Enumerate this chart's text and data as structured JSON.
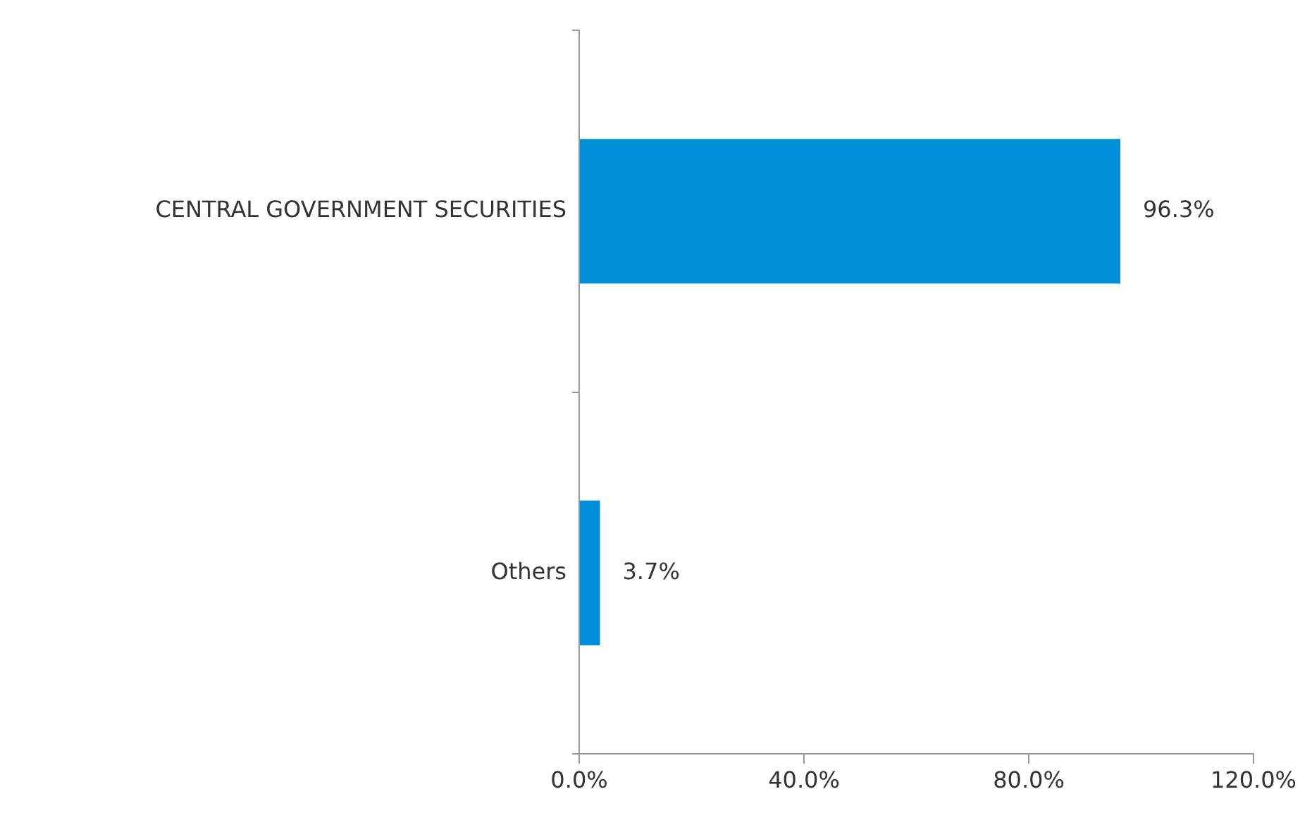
{
  "chart_data": {
    "type": "bar",
    "orientation": "horizontal",
    "categories": [
      "CENTRAL GOVERNMENT SECURITIES",
      "Others"
    ],
    "values": [
      96.3,
      3.7
    ],
    "color": "#008fd6",
    "value_labels": [
      "96.3%",
      "3.7%"
    ],
    "xlim": [
      0,
      120
    ],
    "xticks": [
      {
        "value": 0,
        "label": "0.0%"
      },
      {
        "value": 40,
        "label": "40.0%"
      },
      {
        "value": 80,
        "label": "80.0%"
      },
      {
        "value": 120,
        "label": "120.0%"
      }
    ],
    "grid": false,
    "legend": false
  }
}
